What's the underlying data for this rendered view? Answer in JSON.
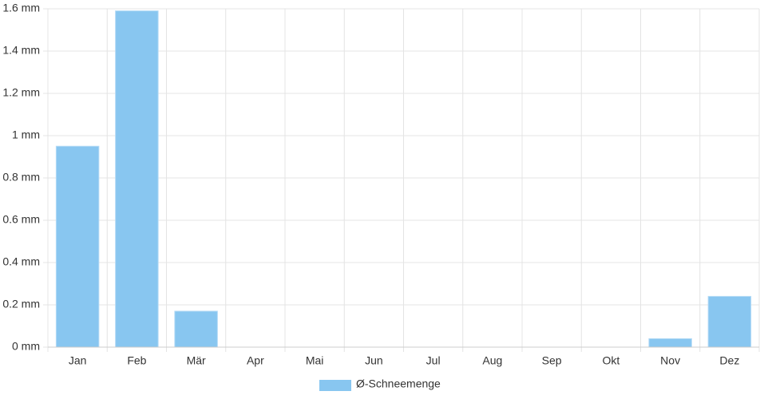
{
  "chart_data": {
    "type": "bar",
    "categories": [
      "Jan",
      "Feb",
      "Mär",
      "Apr",
      "Mai",
      "Jun",
      "Jul",
      "Aug",
      "Sep",
      "Okt",
      "Nov",
      "Dez"
    ],
    "series": [
      {
        "name": "Ø-Schneemenge",
        "color": "#88c6f0",
        "values": [
          0.95,
          1.59,
          0.17,
          0,
          0,
          0,
          0,
          0,
          0,
          0,
          0.04,
          0.24
        ]
      }
    ],
    "ylim": [
      0,
      1.6
    ],
    "yticks": [
      {
        "value": 0,
        "label": "0 mm"
      },
      {
        "value": 0.2,
        "label": "0.2 mm"
      },
      {
        "value": 0.4,
        "label": "0.4 mm"
      },
      {
        "value": 0.6,
        "label": "0.6 mm"
      },
      {
        "value": 0.8,
        "label": "0.8 mm"
      },
      {
        "value": 1,
        "label": "1 mm"
      },
      {
        "value": 1.2,
        "label": "1.2 mm"
      },
      {
        "value": 1.4,
        "label": "1.4 mm"
      },
      {
        "value": 1.6,
        "label": "1.6 mm"
      }
    ],
    "grid": true,
    "legend": "bottom"
  }
}
